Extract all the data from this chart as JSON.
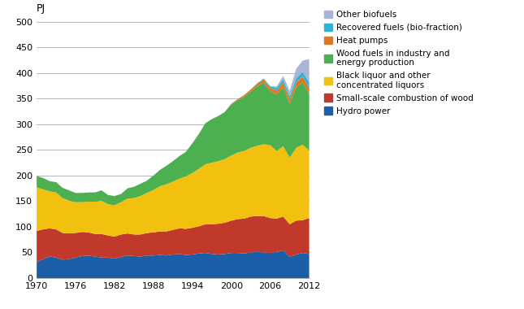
{
  "ylabel": "PJ",
  "xlim": [
    1970,
    2012
  ],
  "ylim": [
    0,
    500
  ],
  "yticks": [
    0,
    50,
    100,
    150,
    200,
    250,
    300,
    350,
    400,
    450,
    500
  ],
  "xticks": [
    1970,
    1976,
    1982,
    1988,
    1994,
    2000,
    2006,
    2012
  ],
  "years": [
    1970,
    1971,
    1972,
    1973,
    1974,
    1975,
    1976,
    1977,
    1978,
    1979,
    1980,
    1981,
    1982,
    1983,
    1984,
    1985,
    1986,
    1987,
    1988,
    1989,
    1990,
    1991,
    1992,
    1993,
    1994,
    1995,
    1996,
    1997,
    1998,
    1999,
    2000,
    2001,
    2002,
    2003,
    2004,
    2005,
    2006,
    2007,
    2008,
    2009,
    2010,
    2011,
    2012
  ],
  "hydro": [
    32,
    37,
    42,
    40,
    36,
    37,
    40,
    43,
    44,
    42,
    40,
    40,
    38,
    41,
    44,
    43,
    42,
    44,
    44,
    45,
    44,
    46,
    47,
    45,
    46,
    48,
    49,
    47,
    46,
    47,
    49,
    49,
    48,
    50,
    51,
    50,
    49,
    51,
    54,
    41,
    46,
    49,
    47
  ],
  "small_wood": [
    60,
    58,
    55,
    55,
    52,
    50,
    48,
    47,
    45,
    44,
    46,
    43,
    43,
    44,
    43,
    42,
    43,
    44,
    45,
    46,
    47,
    48,
    50,
    51,
    52,
    53,
    56,
    58,
    60,
    61,
    63,
    66,
    68,
    70,
    70,
    71,
    68,
    65,
    66,
    64,
    66,
    64,
    70
  ],
  "black_liquor": [
    85,
    78,
    72,
    72,
    68,
    64,
    60,
    58,
    60,
    63,
    65,
    61,
    61,
    63,
    68,
    71,
    75,
    78,
    83,
    88,
    92,
    94,
    97,
    102,
    107,
    112,
    117,
    120,
    122,
    124,
    127,
    130,
    132,
    134,
    137,
    140,
    142,
    132,
    137,
    130,
    142,
    147,
    132
  ],
  "wood_fuels": [
    22,
    22,
    20,
    20,
    20,
    20,
    18,
    18,
    18,
    18,
    20,
    18,
    18,
    16,
    20,
    22,
    24,
    24,
    28,
    32,
    36,
    40,
    44,
    48,
    58,
    68,
    80,
    85,
    88,
    92,
    100,
    102,
    106,
    110,
    116,
    120,
    105,
    110,
    115,
    105,
    118,
    122,
    110
  ],
  "heat_pumps": [
    0,
    0,
    0,
    0,
    0,
    0,
    0,
    0,
    0,
    0,
    0,
    0,
    0,
    0,
    0,
    0,
    0,
    0,
    0,
    0,
    0,
    0,
    0,
    0,
    0,
    0,
    0,
    0,
    0,
    0,
    1,
    2,
    3,
    4,
    5,
    6,
    7,
    8,
    9,
    9,
    10,
    11,
    12
  ],
  "recovered": [
    0,
    0,
    0,
    0,
    0,
    0,
    0,
    0,
    0,
    0,
    0,
    0,
    0,
    0,
    0,
    0,
    0,
    0,
    0,
    0,
    0,
    0,
    0,
    0,
    0,
    0,
    0,
    0,
    0,
    0,
    0,
    0,
    0,
    0,
    1,
    2,
    3,
    5,
    7,
    6,
    8,
    9,
    11
  ],
  "other_biofuels": [
    0,
    0,
    0,
    0,
    0,
    0,
    0,
    0,
    0,
    0,
    0,
    0,
    0,
    0,
    0,
    0,
    0,
    0,
    0,
    0,
    0,
    0,
    0,
    0,
    0,
    0,
    0,
    0,
    0,
    0,
    0,
    0,
    0,
    0,
    0,
    0,
    0,
    3,
    6,
    10,
    18,
    22,
    45
  ],
  "colors": {
    "hydro": "#1a5fa8",
    "small_wood": "#c0392b",
    "black_liquor": "#f2c10f",
    "wood_fuels": "#4caf50",
    "heat_pumps": "#e07820",
    "recovered": "#29b6d4",
    "other_biofuels": "#aab4d8"
  },
  "legend_labels": [
    "Other biofuels",
    "Recovered fuels (bio-fraction)",
    "Heat pumps",
    "Wood fuels in industry and\nenergy production",
    "Black liquor and other\nconcentrated liquors",
    "Small-scale combustion of wood",
    "Hydro power"
  ],
  "legend_colors": [
    "#aab4d8",
    "#29b6d4",
    "#e07820",
    "#4caf50",
    "#f2c10f",
    "#c0392b",
    "#1a5fa8"
  ]
}
